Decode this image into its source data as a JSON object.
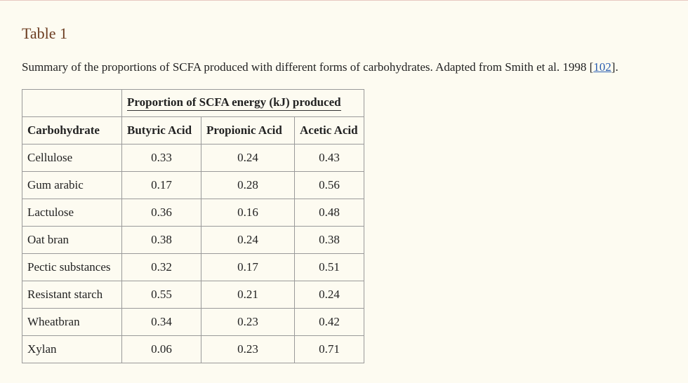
{
  "title": "Table 1",
  "caption": {
    "text": "Summary of the proportions of SCFA produced with different forms of carbohydrates. Adapted from Smith et al. 1998 [",
    "ref_label": "102",
    "suffix": "]."
  },
  "table": {
    "group_header": "Proportion of SCFA energy (kJ) produced",
    "columns": [
      "Carbohydrate",
      "Butyric Acid",
      "Propionic Acid",
      "Acetic Acid"
    ],
    "rows": [
      [
        "Cellulose",
        "0.33",
        "0.24",
        "0.43"
      ],
      [
        "Gum arabic",
        "0.17",
        "0.28",
        "0.56"
      ],
      [
        "Lactulose",
        "0.36",
        "0.16",
        "0.48"
      ],
      [
        "Oat bran",
        "0.38",
        "0.24",
        "0.38"
      ],
      [
        "Pectic substances",
        "0.32",
        "0.17",
        "0.51"
      ],
      [
        "Resistant starch",
        "0.55",
        "0.21",
        "0.24"
      ],
      [
        "Wheatbran",
        "0.34",
        "0.23",
        "0.42"
      ],
      [
        "Xylan",
        "0.06",
        "0.23",
        "0.71"
      ]
    ]
  },
  "colors": {
    "background": "#fdfbf1",
    "title": "#6b3b1f",
    "link": "#2a5db0"
  }
}
